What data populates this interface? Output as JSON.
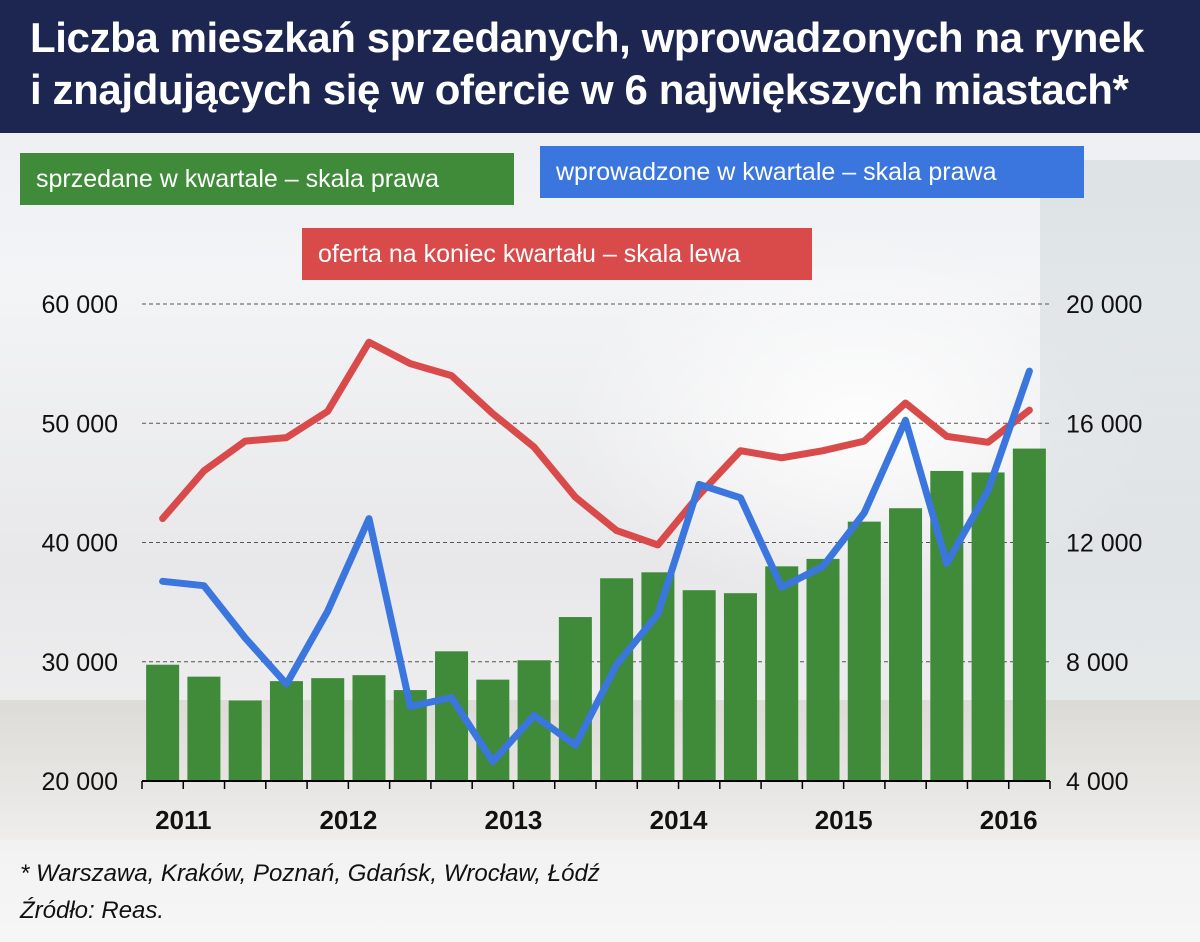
{
  "title": "Liczba mieszkań sprzedanych, wprowadzonych na rynek\ni znajdujących się w ofercie w 6 największych miastach*",
  "colors": {
    "title_bg": "#1c2651",
    "sold": "#3f8b3a",
    "introduced": "#3a76dd",
    "offer": "#d94a4a"
  },
  "legend": {
    "sold": "sprzedane w kwartale – skala prawa",
    "introduced": "wprowadzone w kwartale – skala prawa",
    "offer": "oferta na koniec kwartału – skala lewa"
  },
  "footnote": "* Warszawa, Kraków, Poznań, Gdańsk, Wrocław, Łódź",
  "source": "Źródło: Reas.",
  "chart_data": {
    "type": "bar",
    "categories": [
      "2011 Q1",
      "2011 Q2",
      "2011 Q3",
      "2011 Q4",
      "2012 Q1",
      "2012 Q2",
      "2012 Q3",
      "2012 Q4",
      "2013 Q1",
      "2013 Q2",
      "2013 Q3",
      "2013 Q4",
      "2014 Q1",
      "2014 Q2",
      "2014 Q3",
      "2014 Q4",
      "2015 Q1",
      "2015 Q2",
      "2015 Q3",
      "2015 Q4",
      "2016 Q1",
      "2016 Q2"
    ],
    "x_tick_labels": [
      "2011",
      "2012",
      "2013",
      "2014",
      "2015",
      "2016"
    ],
    "left_axis": {
      "ylim": [
        20000,
        60000
      ],
      "ticks": [
        "20 000",
        "30 000",
        "40 000",
        "50 000",
        "60 000"
      ]
    },
    "right_axis": {
      "ylim": [
        4000,
        20000
      ],
      "ticks": [
        "4 000",
        "8 000",
        "12 000",
        "16 000",
        "20 000"
      ]
    },
    "grid": true,
    "series": [
      {
        "name": "sprzedane w kwartale – skala prawa",
        "type": "bar",
        "axis": "right",
        "values": [
          7900,
          7500,
          6700,
          7350,
          7450,
          7550,
          7050,
          8350,
          7400,
          8050,
          9500,
          10800,
          11000,
          10400,
          10300,
          11200,
          11450,
          12700,
          13150,
          14400,
          14350,
          15150
        ]
      },
      {
        "name": "wprowadzone w kwartale – skala prawa",
        "type": "line",
        "axis": "right",
        "values": [
          10700,
          10550,
          8800,
          7250,
          9700,
          12800,
          6500,
          6800,
          4650,
          6200,
          5200,
          7900,
          9600,
          13950,
          13500,
          10500,
          11200,
          13000,
          16100,
          11300,
          13750,
          17750
        ]
      },
      {
        "name": "oferta na koniec kwartału – skala lewa",
        "type": "line",
        "axis": "left",
        "values": [
          42000,
          46000,
          48500,
          48800,
          51000,
          56800,
          55000,
          54000,
          50800,
          48000,
          43800,
          41000,
          39800,
          44000,
          47700,
          47100,
          47700,
          48500,
          51700,
          48900,
          48400,
          51100
        ]
      }
    ]
  }
}
